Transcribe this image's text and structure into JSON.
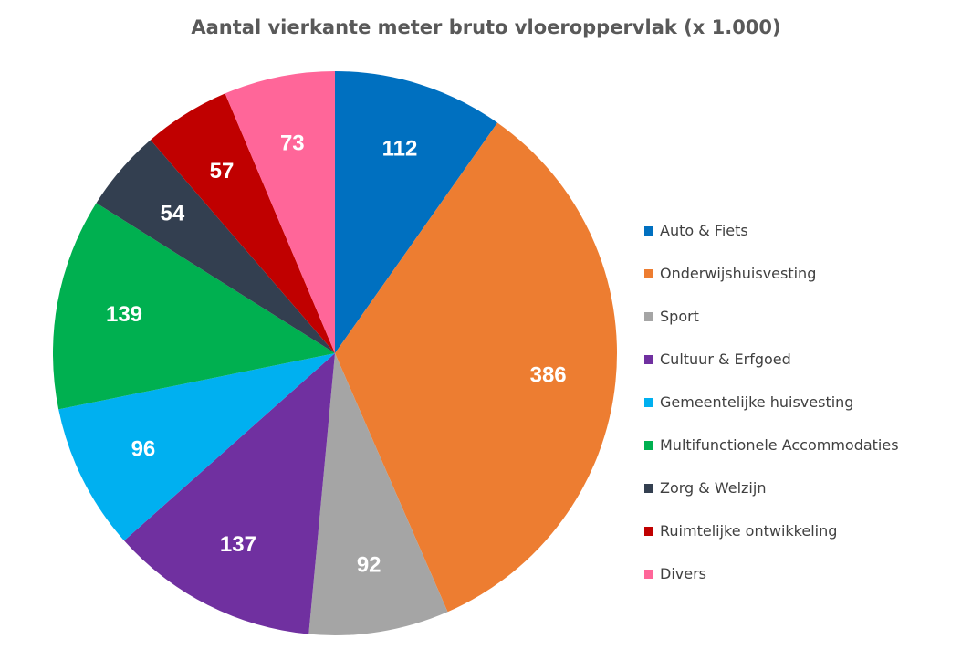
{
  "chart_data": {
    "type": "pie",
    "title": "Aantal vierkante meter bruto vloeroppervlak (x 1.000)",
    "legend_position": "right",
    "slices": [
      {
        "label": "Auto & Fiets",
        "value": 112,
        "color": "#0070C0"
      },
      {
        "label": "Onderwijshuisvesting",
        "value": 386,
        "color": "#ED7D31"
      },
      {
        "label": "Sport",
        "value": 92,
        "color": "#A5A5A5"
      },
      {
        "label": "Cultuur & Erfgoed",
        "value": 137,
        "color": "#7030A0"
      },
      {
        "label": "Gemeentelijke huisvesting",
        "value": 96,
        "color": "#00B0F0"
      },
      {
        "label": "Multifunctionele Accommodaties",
        "value": 139,
        "color": "#00B050"
      },
      {
        "label": "Zorg & Welzijn",
        "value": 54,
        "color": "#333F50"
      },
      {
        "label": "Ruimtelijke ontwikkeling",
        "value": 57,
        "color": "#C00000"
      },
      {
        "label": "Divers",
        "value": 73,
        "color": "#FF6699"
      }
    ]
  }
}
